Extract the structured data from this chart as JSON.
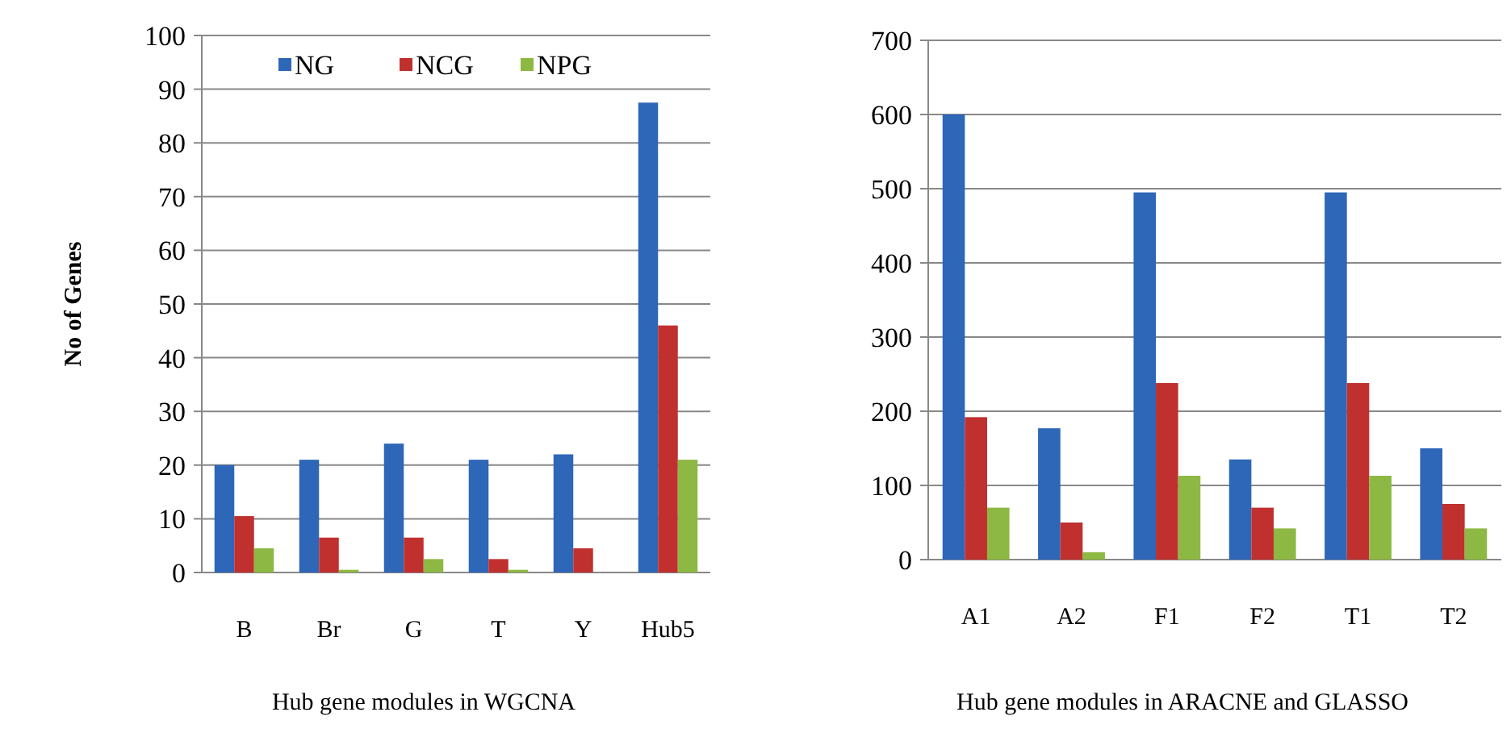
{
  "chart_data": [
    {
      "type": "bar",
      "ylabel": "No of Genes",
      "xlabel": "Hub gene modules in WGCNA",
      "categories": [
        "B",
        "Br",
        "G",
        "T",
        "Y",
        "Hub5"
      ],
      "series": [
        {
          "name": "NG",
          "color": "#2e66b8",
          "values": [
            20,
            21,
            24,
            21,
            22,
            87.5
          ]
        },
        {
          "name": "NCG",
          "color": "#c0302f",
          "values": [
            10.5,
            6.5,
            6.5,
            2.5,
            4.5,
            46
          ]
        },
        {
          "name": "NPG",
          "color": "#8db843",
          "values": [
            4.5,
            0.5,
            2.5,
            0.5,
            0,
            21
          ]
        }
      ],
      "ylim": [
        0,
        100
      ],
      "yticks": [
        0,
        10,
        20,
        30,
        40,
        50,
        60,
        70,
        80,
        90,
        100
      ],
      "grid": "y",
      "legend": "top"
    },
    {
      "type": "bar",
      "xlabel": "Hub gene modules in ARACNE and GLASSO",
      "categories": [
        "A1",
        "A2",
        "F1",
        "F2",
        "T1",
        "T2"
      ],
      "series": [
        {
          "color": "#2e66b8",
          "values": [
            600,
            177,
            495,
            135,
            495,
            150
          ]
        },
        {
          "color": "#c0302f",
          "values": [
            192,
            50,
            238,
            70,
            238,
            75
          ]
        },
        {
          "color": "#8db843",
          "values": [
            70,
            10,
            113,
            42,
            113,
            42
          ]
        }
      ],
      "ylim": [
        0,
        700
      ],
      "yticks": [
        0,
        100,
        200,
        300,
        400,
        500,
        600,
        700
      ],
      "grid": "y"
    }
  ]
}
